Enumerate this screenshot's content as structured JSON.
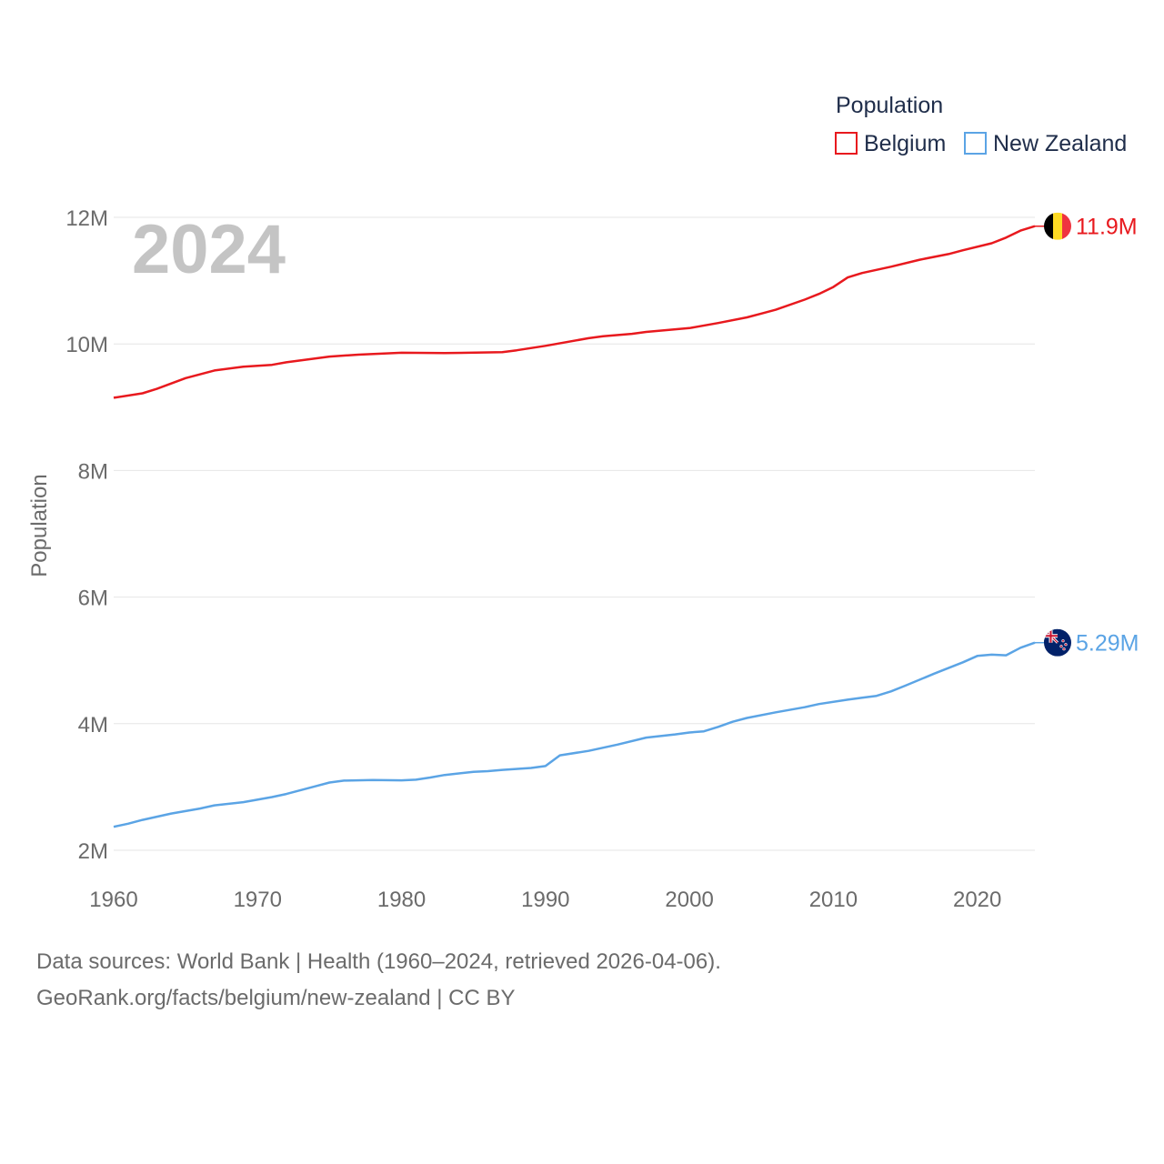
{
  "chart_data": {
    "type": "line",
    "ylabel": "Population",
    "xlabel": "",
    "year_label": "2024",
    "legend_title": "Population",
    "xlim": [
      1960,
      2024
    ],
    "ylim": [
      2000000,
      12000000
    ],
    "x_ticks": [
      1960,
      1970,
      1980,
      1990,
      2000,
      2010,
      2020
    ],
    "y_ticks": [
      {
        "value": 2000000,
        "label": "2M"
      },
      {
        "value": 4000000,
        "label": "4M"
      },
      {
        "value": 6000000,
        "label": "6M"
      },
      {
        "value": 8000000,
        "label": "8M"
      },
      {
        "value": 10000000,
        "label": "10M"
      },
      {
        "value": 12000000,
        "label": "12M"
      }
    ],
    "series": [
      {
        "name": "Belgium",
        "color": "#e8191e",
        "end_label": "11.9M",
        "flag": "belgium-flag",
        "points": [
          [
            1960,
            9150000
          ],
          [
            1962,
            9220000
          ],
          [
            1963,
            9290000
          ],
          [
            1965,
            9460000
          ],
          [
            1967,
            9580000
          ],
          [
            1969,
            9640000
          ],
          [
            1971,
            9670000
          ],
          [
            1972,
            9710000
          ],
          [
            1975,
            9800000
          ],
          [
            1977,
            9830000
          ],
          [
            1980,
            9860000
          ],
          [
            1983,
            9855000
          ],
          [
            1987,
            9870000
          ],
          [
            1988,
            9900000
          ],
          [
            1990,
            9970000
          ],
          [
            1993,
            10090000
          ],
          [
            1994,
            10120000
          ],
          [
            1996,
            10160000
          ],
          [
            1997,
            10190000
          ],
          [
            2000,
            10250000
          ],
          [
            2002,
            10330000
          ],
          [
            2004,
            10420000
          ],
          [
            2005,
            10480000
          ],
          [
            2006,
            10540000
          ],
          [
            2008,
            10700000
          ],
          [
            2009,
            10790000
          ],
          [
            2010,
            10900000
          ],
          [
            2011,
            11050000
          ],
          [
            2012,
            11120000
          ],
          [
            2014,
            11220000
          ],
          [
            2016,
            11330000
          ],
          [
            2018,
            11420000
          ],
          [
            2019,
            11480000
          ],
          [
            2021,
            11590000
          ],
          [
            2022,
            11680000
          ],
          [
            2023,
            11790000
          ],
          [
            2024,
            11860000
          ]
        ]
      },
      {
        "name": "New Zealand",
        "color": "#5ba4e5",
        "end_label": "5.29M",
        "flag": "new-zealand-flag",
        "points": [
          [
            1960,
            2370000
          ],
          [
            1961,
            2420000
          ],
          [
            1962,
            2480000
          ],
          [
            1964,
            2580000
          ],
          [
            1966,
            2660000
          ],
          [
            1967,
            2710000
          ],
          [
            1969,
            2760000
          ],
          [
            1971,
            2840000
          ],
          [
            1972,
            2890000
          ],
          [
            1974,
            3010000
          ],
          [
            1975,
            3070000
          ],
          [
            1976,
            3100000
          ],
          [
            1978,
            3110000
          ],
          [
            1980,
            3105000
          ],
          [
            1981,
            3115000
          ],
          [
            1982,
            3150000
          ],
          [
            1983,
            3190000
          ],
          [
            1985,
            3240000
          ],
          [
            1986,
            3250000
          ],
          [
            1987,
            3270000
          ],
          [
            1989,
            3300000
          ],
          [
            1990,
            3330000
          ],
          [
            1991,
            3500000
          ],
          [
            1993,
            3570000
          ],
          [
            1995,
            3670000
          ],
          [
            1997,
            3780000
          ],
          [
            1999,
            3830000
          ],
          [
            2000,
            3860000
          ],
          [
            2001,
            3880000
          ],
          [
            2002,
            3950000
          ],
          [
            2003,
            4030000
          ],
          [
            2004,
            4090000
          ],
          [
            2006,
            4180000
          ],
          [
            2008,
            4260000
          ],
          [
            2009,
            4310000
          ],
          [
            2011,
            4380000
          ],
          [
            2012,
            4410000
          ],
          [
            2013,
            4440000
          ],
          [
            2014,
            4510000
          ],
          [
            2015,
            4600000
          ],
          [
            2017,
            4790000
          ],
          [
            2018,
            4880000
          ],
          [
            2019,
            4970000
          ],
          [
            2020,
            5070000
          ],
          [
            2021,
            5090000
          ],
          [
            2022,
            5080000
          ],
          [
            2023,
            5200000
          ],
          [
            2024,
            5280000
          ]
        ]
      }
    ]
  },
  "footer": {
    "line1": "Data sources: World Bank | Health (1960–2024, retrieved 2026-04-06).",
    "line2": "GeoRank.org/facts/belgium/new-zealand | CC BY"
  }
}
